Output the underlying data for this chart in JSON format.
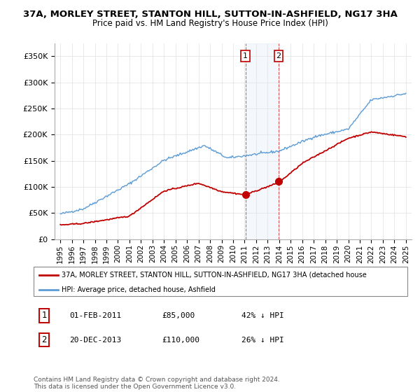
{
  "title": "37A, MORLEY STREET, STANTON HILL, SUTTON-IN-ASHFIELD, NG17 3HA",
  "subtitle": "Price paid vs. HM Land Registry's House Price Index (HPI)",
  "hpi_label": "HPI: Average price, detached house, Ashfield",
  "property_label": "37A, MORLEY STREET, STANTON HILL, SUTTON-IN-ASHFIELD, NG17 3HA (detached house",
  "hpi_color": "#5b9bd5",
  "property_color": "#c00000",
  "sale1_date_x": 2011.08,
  "sale1_price": 85000,
  "sale2_date_x": 2013.96,
  "sale2_price": 110000,
  "ylim": [
    0,
    375000
  ],
  "xlim": [
    1994.5,
    2025.5
  ],
  "footer": "Contains HM Land Registry data © Crown copyright and database right 2024.\nThis data is licensed under the Open Government Licence v3.0.",
  "yticks": [
    0,
    50000,
    100000,
    150000,
    200000,
    250000,
    300000,
    350000
  ],
  "ytick_labels": [
    "£0",
    "£50K",
    "£100K",
    "£150K",
    "£200K",
    "£250K",
    "£300K",
    "£350K"
  ],
  "xticks": [
    1995,
    1996,
    1997,
    1998,
    1999,
    2000,
    2001,
    2002,
    2003,
    2004,
    2005,
    2006,
    2007,
    2008,
    2009,
    2010,
    2011,
    2012,
    2013,
    2014,
    2015,
    2016,
    2017,
    2018,
    2019,
    2020,
    2021,
    2022,
    2023,
    2024,
    2025
  ],
  "sale1_text": "01-FEB-2011",
  "sale1_price_text": "£85,000",
  "sale1_pct_text": "42% ↓ HPI",
  "sale2_text": "20-DEC-2013",
  "sale2_price_text": "£110,000",
  "sale2_pct_text": "26% ↓ HPI"
}
